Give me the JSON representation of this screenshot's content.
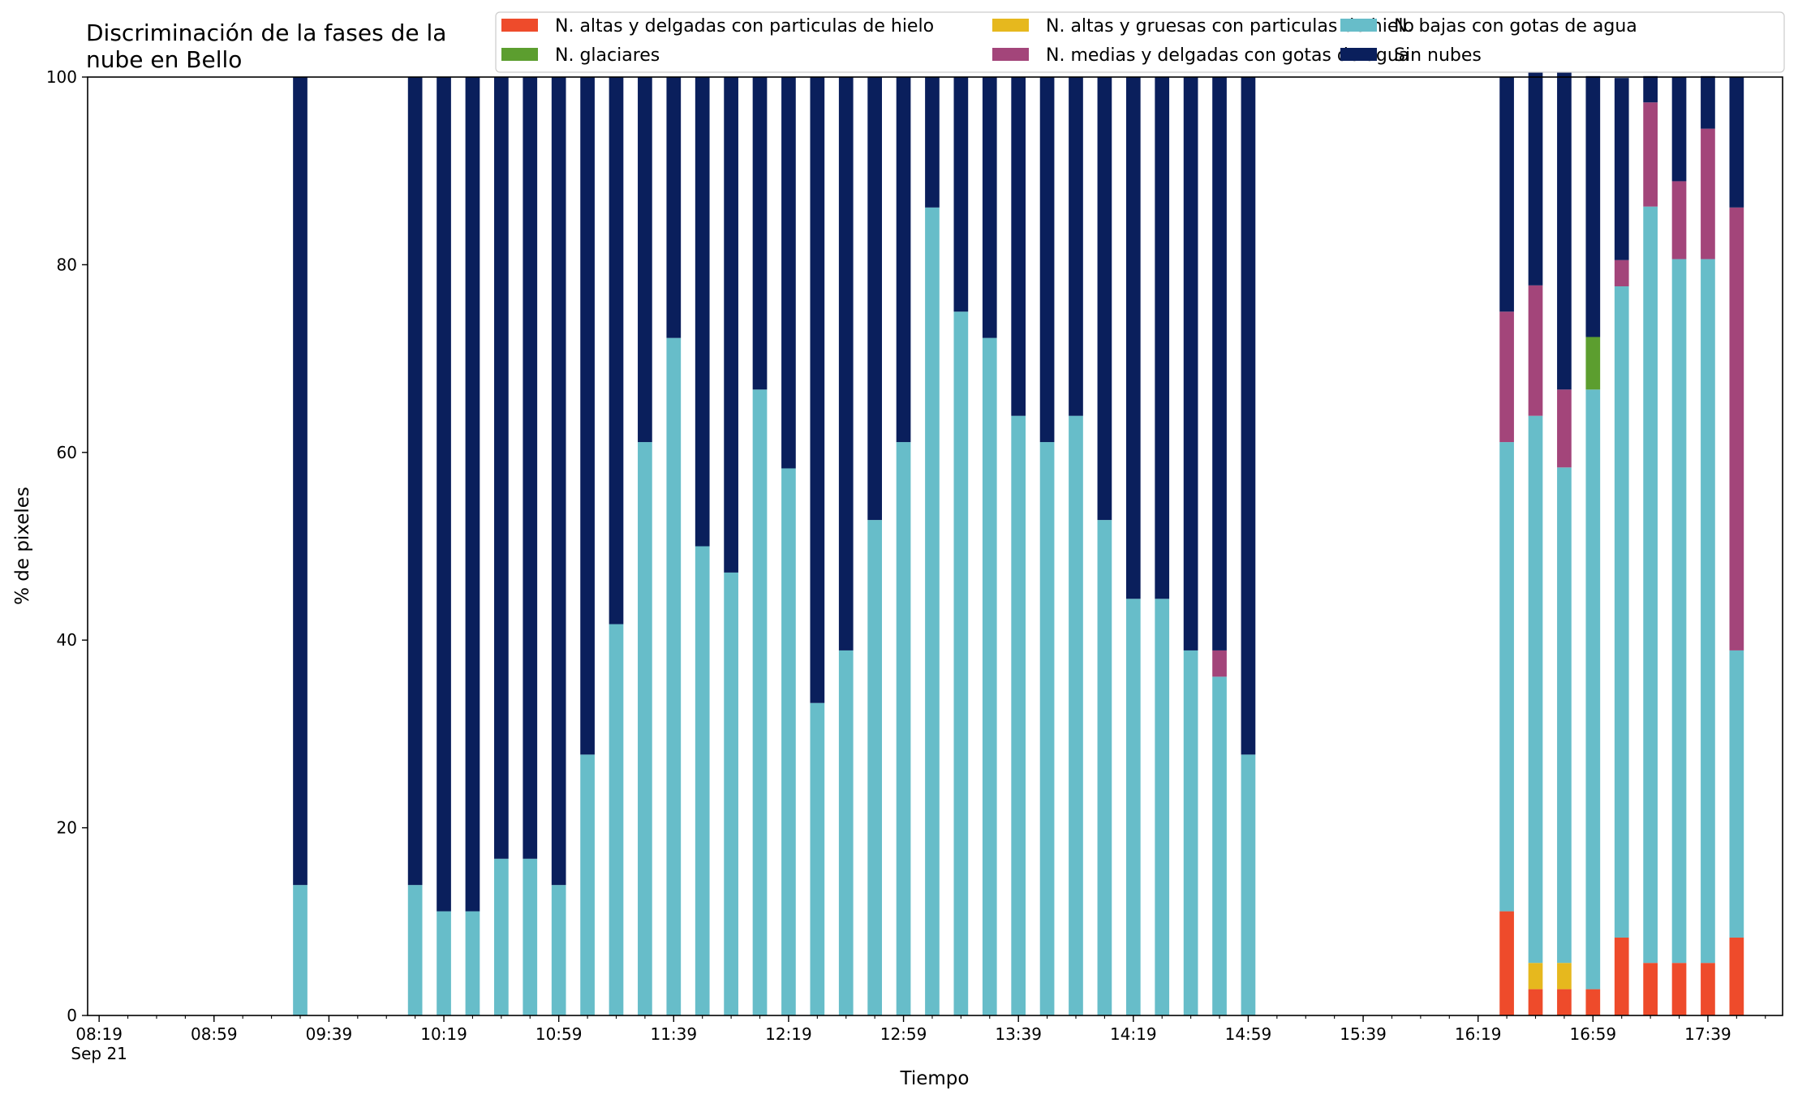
{
  "chart_data": {
    "type": "bar",
    "stacked": true,
    "title_line1": "Discriminación de la fases de la",
    "title_line2": "nube en Bello",
    "xlabel": "Tiempo",
    "ylabel": "% de pixeles",
    "ylim": [
      0,
      100
    ],
    "yticks": [
      "0",
      "20",
      "40",
      "60",
      "80",
      "100"
    ],
    "x_date_label": "Sep 21",
    "x_range_minutes": [
      "08:15",
      "18:05"
    ],
    "x_major_ticks": [
      "08:19",
      "08:59",
      "09:39",
      "10:19",
      "10:59",
      "11:39",
      "12:19",
      "12:59",
      "13:39",
      "14:19",
      "14:59",
      "15:39",
      "16:19",
      "16:59",
      "17:39"
    ],
    "x_minor_tick_interval_minutes": 10,
    "bar_interval_minutes": 10,
    "grid": false,
    "legend_placement": "top-right",
    "legend_columns": 3,
    "categories": [
      "09:29",
      "10:09",
      "10:19",
      "10:29",
      "10:39",
      "10:49",
      "10:59",
      "11:09",
      "11:19",
      "11:29",
      "11:39",
      "11:49",
      "11:59",
      "12:09",
      "12:19",
      "12:29",
      "12:39",
      "12:49",
      "12:59",
      "13:09",
      "13:19",
      "13:29",
      "13:39",
      "13:49",
      "13:59",
      "14:09",
      "14:19",
      "14:29",
      "14:39",
      "14:49",
      "14:59",
      "16:29",
      "16:39",
      "16:49",
      "16:59",
      "17:09",
      "17:19",
      "17:29",
      "17:39",
      "17:49"
    ],
    "series": [
      {
        "name": "N. altas y delgadas con particulas de hielo",
        "color": "#ee4b2b",
        "values": [
          0,
          0,
          0,
          0,
          0,
          0,
          0,
          0,
          0,
          0,
          0,
          0,
          0,
          0,
          0,
          0,
          0,
          0,
          0,
          0,
          0,
          0,
          0,
          0,
          0,
          0,
          0,
          0,
          0,
          0,
          0,
          11.1,
          2.8,
          2.8,
          2.8,
          8.3,
          5.6,
          5.6,
          5.6,
          8.3
        ]
      },
      {
        "name": "N. altas y gruesas con particulas de hielo",
        "color": "#e6b81e",
        "values": [
          0,
          0,
          0,
          0,
          0,
          0,
          0,
          0,
          0,
          0,
          0,
          0,
          0,
          0,
          0,
          0,
          0,
          0,
          0,
          0,
          0,
          0,
          0,
          0,
          0,
          0,
          0,
          0,
          0,
          0,
          0,
          0,
          2.8,
          2.8,
          0,
          0,
          0,
          0,
          0,
          0
        ]
      },
      {
        "name": "N. bajas con gotas de agua",
        "color": "#67bdc9",
        "values": [
          13.9,
          13.9,
          11.1,
          11.1,
          16.7,
          16.7,
          13.9,
          27.8,
          41.7,
          61.1,
          72.2,
          50.0,
          47.2,
          66.7,
          58.3,
          33.3,
          38.9,
          52.8,
          61.1,
          86.1,
          75.0,
          72.2,
          63.9,
          61.1,
          63.9,
          52.8,
          44.4,
          44.4,
          38.9,
          36.1,
          27.8,
          50.0,
          58.3,
          52.8,
          63.9,
          69.4,
          80.6,
          75.0,
          75.0,
          30.6
        ]
      },
      {
        "name": "N. glaciares",
        "color": "#5c9e2f",
        "values": [
          0,
          0,
          0,
          0,
          0,
          0,
          0,
          0,
          0,
          0,
          0,
          0,
          0,
          0,
          0,
          0,
          0,
          0,
          0,
          0,
          0,
          0,
          0,
          0,
          0,
          0,
          0,
          0,
          0,
          0,
          0,
          0,
          0,
          0,
          5.6,
          0,
          0,
          0,
          0,
          0
        ]
      },
      {
        "name": "N. medias y delgadas con gotas de agua",
        "color": "#a3457a",
        "values": [
          0,
          0,
          0,
          0,
          0,
          0,
          0,
          0,
          0,
          0,
          0,
          0,
          0,
          0,
          0,
          0,
          0,
          0,
          0,
          0,
          0,
          0,
          0,
          0,
          0,
          0,
          0,
          0,
          0,
          2.8,
          0,
          13.9,
          13.9,
          8.3,
          0,
          2.8,
          11.1,
          8.3,
          13.9,
          47.2
        ]
      },
      {
        "name": "Sin nubes",
        "color": "#0a1f5c",
        "values": [
          86.1,
          86.1,
          88.9,
          88.9,
          83.3,
          83.3,
          86.1,
          72.2,
          58.3,
          38.9,
          27.8,
          50.0,
          52.8,
          33.3,
          41.7,
          66.7,
          61.1,
          47.2,
          38.9,
          13.9,
          25.0,
          27.8,
          36.1,
          38.9,
          36.1,
          47.2,
          55.6,
          55.6,
          61.1,
          61.1,
          72.2,
          25.0,
          25.0,
          36.1,
          27.8,
          19.4,
          2.8,
          11.1,
          5.6,
          13.9
        ]
      }
    ],
    "legend_order": [
      0,
      1,
      2,
      3,
      4,
      5
    ]
  }
}
